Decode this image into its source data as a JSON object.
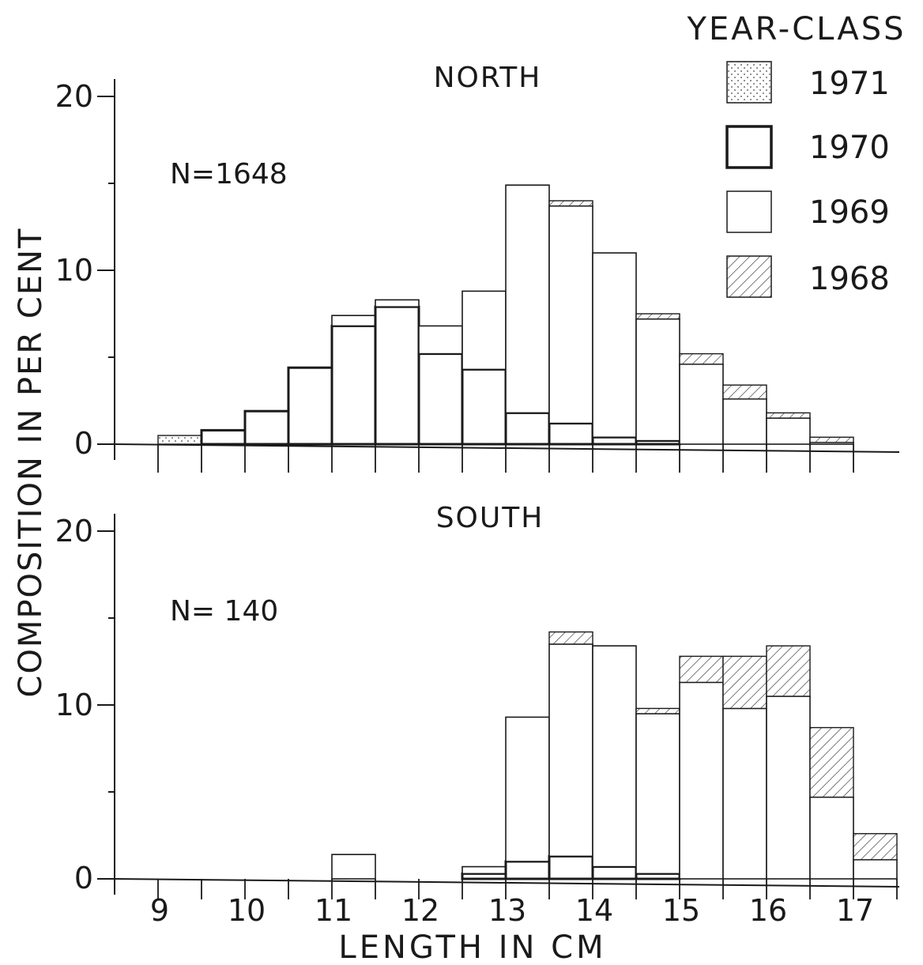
{
  "chart_data": {
    "type": "bar",
    "stacked": true,
    "xlabel": "LENGTH IN CM",
    "ylabel": "COMPOSITION IN PER CENT",
    "x_tick_labels": [
      "9",
      "10",
      "11",
      "12",
      "13",
      "14",
      "15",
      "16",
      "17"
    ],
    "y_tick_labels": [
      "0",
      "10",
      "20"
    ],
    "ylim": [
      0,
      20
    ],
    "bin_width_cm": 0.5,
    "legend": {
      "title": "YEAR-CLASS",
      "position": "top-right",
      "items": [
        {
          "label": "1971",
          "pattern": "dotted"
        },
        {
          "label": "1970",
          "pattern": "bold-outline"
        },
        {
          "label": "1969",
          "pattern": "plain"
        },
        {
          "label": "1968",
          "pattern": "hatched"
        }
      ]
    },
    "colors": {
      "stroke": "#1a1a1a",
      "background": "#ffffff",
      "hatch": "#333333"
    },
    "panels": [
      {
        "title": "NORTH",
        "n_label": "N=1648",
        "bins": [
          {
            "x": 9.0,
            "y1971": 0.5,
            "y1970": 0.0,
            "y1969": 0.0,
            "y1968": 0.0
          },
          {
            "x": 9.5,
            "y1971": 0.0,
            "y1970": 0.8,
            "y1969": 0.0,
            "y1968": 0.0
          },
          {
            "x": 10.0,
            "y1971": 0.0,
            "y1970": 1.9,
            "y1969": 0.0,
            "y1968": 0.0
          },
          {
            "x": 10.5,
            "y1971": 0.0,
            "y1970": 4.4,
            "y1969": 0.0,
            "y1968": 0.0
          },
          {
            "x": 11.0,
            "y1971": 0.0,
            "y1970": 6.8,
            "y1969": 0.6,
            "y1968": 0.0
          },
          {
            "x": 11.5,
            "y1971": 0.0,
            "y1970": 7.9,
            "y1969": 0.4,
            "y1968": 0.0
          },
          {
            "x": 12.0,
            "y1971": 0.0,
            "y1970": 5.2,
            "y1969": 1.6,
            "y1968": 0.0
          },
          {
            "x": 12.5,
            "y1971": 0.0,
            "y1970": 4.3,
            "y1969": 4.5,
            "y1968": 0.0
          },
          {
            "x": 13.0,
            "y1971": 0.0,
            "y1970": 1.8,
            "y1969": 13.1,
            "y1968": 0.0
          },
          {
            "x": 13.5,
            "y1971": 0.0,
            "y1970": 1.2,
            "y1969": 12.5,
            "y1968": 0.3
          },
          {
            "x": 14.0,
            "y1971": 0.0,
            "y1970": 0.4,
            "y1969": 10.6,
            "y1968": 0.0
          },
          {
            "x": 14.5,
            "y1971": 0.0,
            "y1970": 0.2,
            "y1969": 7.0,
            "y1968": 0.3
          },
          {
            "x": 15.0,
            "y1971": 0.0,
            "y1970": 0.0,
            "y1969": 4.6,
            "y1968": 0.6
          },
          {
            "x": 15.5,
            "y1971": 0.0,
            "y1970": 0.0,
            "y1969": 2.6,
            "y1968": 0.8
          },
          {
            "x": 16.0,
            "y1971": 0.0,
            "y1970": 0.0,
            "y1969": 1.5,
            "y1968": 0.3
          },
          {
            "x": 16.5,
            "y1971": 0.0,
            "y1970": 0.0,
            "y1969": 0.1,
            "y1968": 0.3
          }
        ]
      },
      {
        "title": "SOUTH",
        "n_label": "N= 140",
        "bins": [
          {
            "x": 11.0,
            "y1971": 0.0,
            "y1970": 0.0,
            "y1969": 1.4,
            "y1968": 0.0
          },
          {
            "x": 12.5,
            "y1971": 0.0,
            "y1970": 0.3,
            "y1969": 0.4,
            "y1968": 0.0
          },
          {
            "x": 13.0,
            "y1971": 0.0,
            "y1970": 1.0,
            "y1969": 8.3,
            "y1968": 0.0
          },
          {
            "x": 13.5,
            "y1971": 0.0,
            "y1970": 1.3,
            "y1969": 12.2,
            "y1968": 0.7
          },
          {
            "x": 14.0,
            "y1971": 0.0,
            "y1970": 0.7,
            "y1969": 12.7,
            "y1968": 0.0
          },
          {
            "x": 14.5,
            "y1971": 0.0,
            "y1970": 0.3,
            "y1969": 9.2,
            "y1968": 0.3
          },
          {
            "x": 15.0,
            "y1971": 0.0,
            "y1970": 0.0,
            "y1969": 11.3,
            "y1968": 1.5
          },
          {
            "x": 15.5,
            "y1971": 0.0,
            "y1970": 0.0,
            "y1969": 9.8,
            "y1968": 3.0
          },
          {
            "x": 16.0,
            "y1971": 0.0,
            "y1970": 0.0,
            "y1969": 10.5,
            "y1968": 2.9
          },
          {
            "x": 16.5,
            "y1971": 0.0,
            "y1970": 0.0,
            "y1969": 4.7,
            "y1968": 4.0
          },
          {
            "x": 17.0,
            "y1971": 0.0,
            "y1970": 0.0,
            "y1969": 1.1,
            "y1968": 1.5
          }
        ]
      }
    ]
  }
}
